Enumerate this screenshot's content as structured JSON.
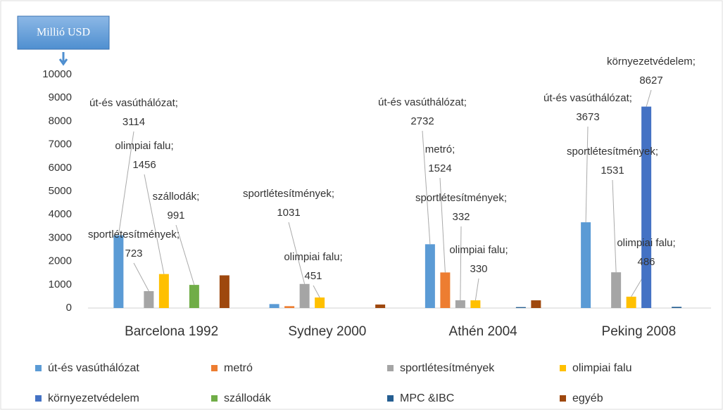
{
  "chart_data": {
    "type": "bar",
    "ylabel": "Millió USD",
    "categories": [
      "Barcelona 1992",
      "Sydney 2000",
      "Athén 2004",
      "Peking 2008"
    ],
    "series": [
      {
        "name": "út-és vasúthálózat",
        "color": "#5b9bd5",
        "values": [
          3114,
          170,
          2732,
          3673
        ],
        "value_labels": [
          "út-és vasúthálózat;\n3114",
          null,
          "út-és vasúthálózat;\n2732",
          "út-és vasúthálózat;\n3673"
        ]
      },
      {
        "name": "metró",
        "color": "#ed7d31",
        "values": [
          null,
          80,
          1524,
          null
        ],
        "value_labels": [
          null,
          null,
          "metró;\n1524",
          null
        ]
      },
      {
        "name": "sportlétesítmények",
        "color": "#a5a5a5",
        "values": [
          723,
          1031,
          332,
          1531
        ],
        "value_labels": [
          "sportlétesítmények;\n723",
          "sportlétesítmények;\n1031",
          "sportlétesítmények;\n332",
          "sportlétesítmények;\n1531"
        ]
      },
      {
        "name": "olimpiai falu",
        "color": "#ffc000",
        "values": [
          1456,
          451,
          330,
          486
        ],
        "value_labels": [
          "olimpiai falu;\n1456",
          "olimpiai falu;\n451",
          "olimpiai falu;\n330",
          "olimpiai falu;\n486"
        ]
      },
      {
        "name": "környezetvédelem",
        "color": "#4472c4",
        "values": [
          null,
          null,
          null,
          8627
        ],
        "value_labels": [
          null,
          null,
          null,
          "környezetvédelem;\n8627"
        ]
      },
      {
        "name": "szállodák",
        "color": "#70ad47",
        "values": [
          991,
          null,
          null,
          null
        ],
        "value_labels": [
          "szállodák;\n991",
          null,
          null,
          null
        ]
      },
      {
        "name": "MPC &IBC",
        "color": "#255e91",
        "values": [
          null,
          null,
          40,
          50
        ],
        "value_labels": [
          null,
          null,
          null,
          null
        ]
      },
      {
        "name": "egyéb",
        "color": "#9e480e",
        "values": [
          1400,
          150,
          330,
          null
        ],
        "value_labels": [
          null,
          null,
          null,
          null
        ]
      }
    ],
    "ylim": [
      0,
      10000
    ],
    "yticks": [
      0,
      1000,
      2000,
      3000,
      4000,
      5000,
      6000,
      7000,
      8000,
      9000,
      10000
    ],
    "grid": false,
    "legend": "bottom"
  }
}
